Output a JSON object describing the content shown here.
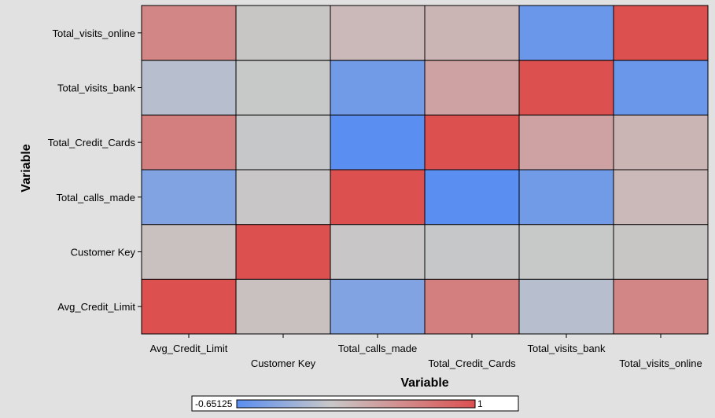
{
  "chart_data": {
    "type": "heatmap",
    "xlabel": "Variable",
    "ylabel": "Variable",
    "x_categories": [
      "Avg_Credit_Limit",
      "Customer Key",
      "Total_calls_made",
      "Total_Credit_Cards",
      "Total_visits_bank",
      "Total_visits_online"
    ],
    "y_categories": [
      "Avg_Credit_Limit",
      "Customer Key",
      "Total_calls_made",
      "Total_Credit_Cards",
      "Total_visits_bank",
      "Total_visits_online"
    ],
    "values": [
      [
        1.0,
        0.068,
        -0.414,
        0.609,
        -0.1,
        0.551
      ],
      [
        0.068,
        1.0,
        0.019,
        -0.011,
        -0.003,
        0.022
      ],
      [
        -0.414,
        0.019,
        1.0,
        -0.651,
        -0.506,
        0.127
      ],
      [
        0.609,
        -0.011,
        -0.651,
        1.0,
        0.316,
        0.168
      ],
      [
        -0.1,
        -0.003,
        -0.506,
        0.316,
        1.0,
        -0.552
      ],
      [
        0.551,
        0.022,
        0.127,
        0.168,
        -0.552,
        1.0
      ]
    ],
    "color_scale": {
      "min": -0.65125,
      "max": 1,
      "min_label": "-0.65125",
      "max_label": "1",
      "low_color": "#5a8ef0",
      "mid_color": "#c8c8c8",
      "high_color": "#dc5050"
    },
    "grid": true,
    "legend_placement": "bottom"
  }
}
